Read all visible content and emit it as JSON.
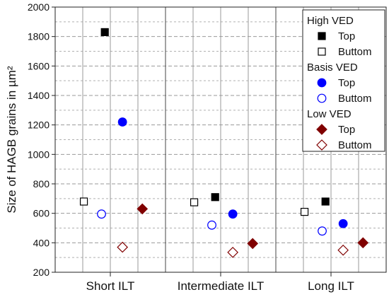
{
  "chart_data": {
    "type": "scatter",
    "title": "",
    "xlabel": "",
    "ylabel": "Size of HAGB grains in µm²",
    "ylim": [
      200,
      2000
    ],
    "yticks": [
      200,
      400,
      600,
      800,
      1000,
      1200,
      1400,
      1600,
      1800,
      2000
    ],
    "grid": true,
    "legend_position": "top-right",
    "categories": [
      "Short ILT",
      "Intermediate ILT",
      "Long ILT"
    ],
    "legend_groups": [
      {
        "title": "High VED",
        "series_idx": [
          0,
          1
        ]
      },
      {
        "title": "Basis VED",
        "series_idx": [
          2,
          3
        ]
      },
      {
        "title": "Low VED",
        "series_idx": [
          4,
          5
        ]
      }
    ],
    "series": [
      {
        "name": "Top",
        "group": "High VED",
        "marker": "square",
        "filled": true,
        "color": "#000000",
        "values": [
          1830,
          710,
          680
        ]
      },
      {
        "name": "Buttom",
        "group": "High VED",
        "marker": "square",
        "filled": false,
        "color": "#000000",
        "values": [
          680,
          675,
          610
        ]
      },
      {
        "name": "Top",
        "group": "Basis VED",
        "marker": "circle",
        "filled": true,
        "color": "#0000ff",
        "values": [
          1220,
          595,
          530
        ]
      },
      {
        "name": "Buttom",
        "group": "Basis VED",
        "marker": "circle",
        "filled": false,
        "color": "#0000ff",
        "values": [
          595,
          520,
          480
        ]
      },
      {
        "name": "Top",
        "group": "Low VED",
        "marker": "diamond",
        "filled": true,
        "color": "#800000",
        "values": [
          630,
          395,
          400
        ]
      },
      {
        "name": "Buttom",
        "group": "Low VED",
        "marker": "diamond",
        "filled": false,
        "color": "#800000",
        "values": [
          370,
          335,
          350
        ]
      }
    ]
  }
}
